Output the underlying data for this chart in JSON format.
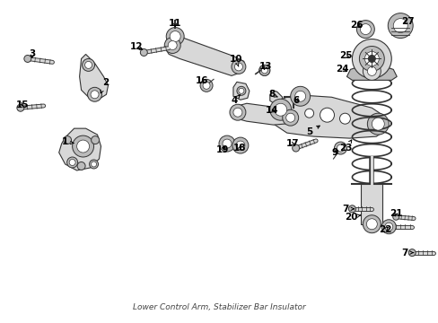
{
  "background_color": "#ffffff",
  "fig_width": 4.89,
  "fig_height": 3.6,
  "dpi": 100,
  "caption": "Lower Control Arm, Stabilizer Bar Insulator",
  "ec": "#333333",
  "fc_light": "#d8d8d8",
  "fc_mid": "#bbbbbb",
  "fc_dark": "#999999"
}
